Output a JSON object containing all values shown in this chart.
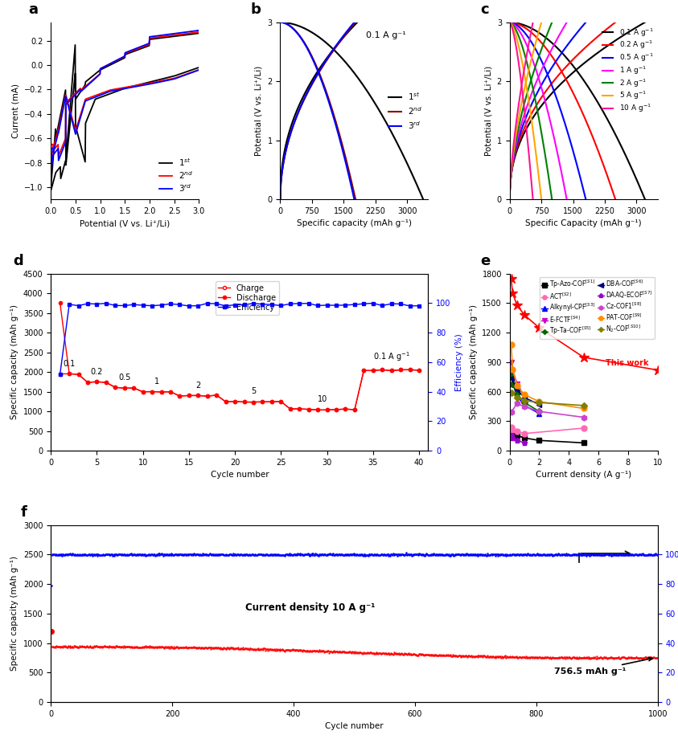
{
  "panel_a": {
    "label": "a",
    "xlabel": "Potential (V vs. Li⁺/Li)",
    "ylabel": "Current (mA)",
    "xlim": [
      0,
      3.0
    ],
    "ylim": [
      -1.1,
      0.35
    ],
    "yticks": [
      -1.0,
      -0.8,
      -0.6,
      -0.4,
      -0.2,
      0.0,
      0.2
    ],
    "xticks": [
      0.0,
      0.5,
      1.0,
      1.5,
      2.0,
      2.5,
      3.0
    ],
    "colors": [
      "black",
      "red",
      "blue"
    ]
  },
  "panel_b": {
    "label": "b",
    "xlabel": "Specific capacity (mAh g⁻¹)",
    "ylabel": "Potential (V vs. Li⁺/Li)",
    "xlim": [
      0,
      3500
    ],
    "ylim": [
      0,
      3.0
    ],
    "xticks": [
      0,
      750,
      1500,
      2250,
      3000
    ],
    "yticks": [
      0,
      1,
      2,
      3
    ],
    "annotation": "0.1 A g⁻¹",
    "colors": [
      "black",
      "#8B0000",
      "blue"
    ]
  },
  "panel_c": {
    "label": "c",
    "xlabel": "Specific Capacity (mAh g⁻¹)",
    "ylabel": "Potential (V vs. Li⁺/Li)",
    "xlim": [
      0,
      3500
    ],
    "ylim": [
      0,
      3.0
    ],
    "xticks": [
      0,
      750,
      1500,
      2250,
      3000
    ],
    "yticks": [
      0,
      1,
      2,
      3
    ],
    "rate_capacities": [
      3200,
      2500,
      1800,
      1350,
      1000,
      750,
      550
    ],
    "colors": [
      "black",
      "red",
      "blue",
      "magenta",
      "green",
      "orange",
      "deeppink"
    ],
    "labels": [
      "0.1 A g⁻¹",
      "0.2 A g⁻¹",
      "0.5 A g⁻¹",
      "1 A g⁻¹",
      "2 A g⁻¹",
      "5 A g⁻¹",
      "10 A g⁻¹"
    ]
  },
  "panel_d": {
    "label": "d",
    "xlabel": "Cycle number",
    "ylabel_left": "Specific capacity (mAh g⁻¹)",
    "ylabel_right": "Efficiency (%)",
    "xlim": [
      0,
      41
    ],
    "ylim_left": [
      0,
      4500
    ],
    "ylim_right": [
      0,
      120
    ],
    "xticks": [
      0,
      5,
      10,
      15,
      20,
      25,
      30,
      35,
      40
    ],
    "yticks_left": [
      0,
      500,
      1000,
      1500,
      2000,
      2500,
      3000,
      3500,
      4000,
      4500
    ],
    "yticks_right": [
      0,
      20,
      40,
      60,
      80,
      100
    ]
  },
  "panel_e": {
    "label": "e",
    "xlabel": "Current density (A g⁻¹)",
    "ylabel": "Specific capacity (mAh g⁻¹)",
    "xlim": [
      0,
      10
    ],
    "ylim": [
      0,
      1800
    ],
    "xticks": [
      0,
      2,
      4,
      6,
      8,
      10
    ],
    "yticks": [
      0,
      300,
      600,
      900,
      1200,
      1500,
      1800
    ]
  },
  "panel_f": {
    "label": "f",
    "xlabel": "Cycle number",
    "ylabel_left": "Specific capacity (mAh g⁻¹)",
    "ylabel_right": "Efficiency (%)",
    "xlim": [
      0,
      1000
    ],
    "ylim_left": [
      0,
      3000
    ],
    "ylim_right": [
      0,
      120
    ],
    "yticks_left": [
      0,
      500,
      1000,
      1500,
      2000,
      2500,
      3000
    ],
    "yticks_right": [
      0,
      20,
      40,
      60,
      80,
      100
    ],
    "xticks": [
      0,
      200,
      400,
      600,
      800,
      1000
    ],
    "annotation1": "Current density 10 A g⁻¹",
    "annotation2": "756.5 mAh g⁻¹"
  }
}
